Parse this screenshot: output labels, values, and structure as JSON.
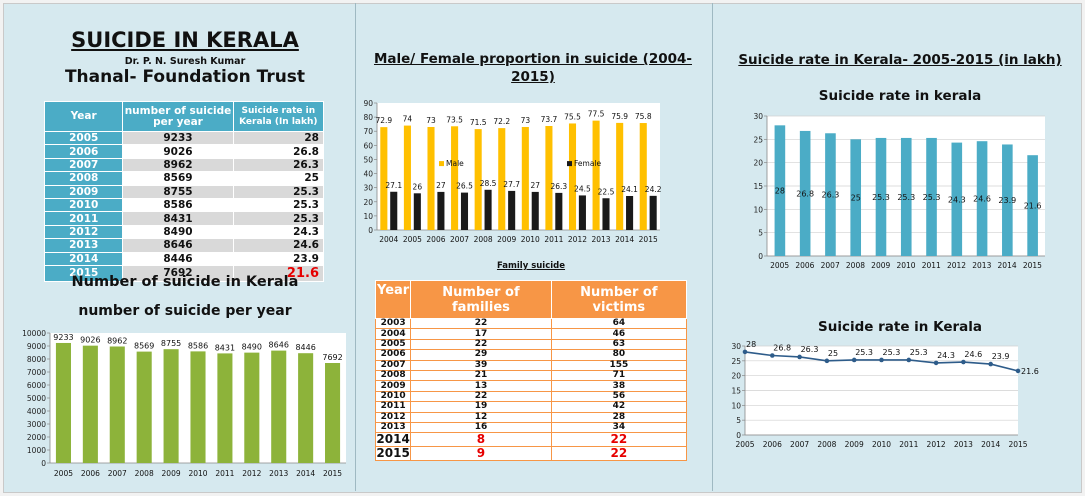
{
  "left_panel": {
    "title": "SUICIDE IN KERALA",
    "author": "Dr. P. N. Suresh Kumar",
    "org": "Thanal- Foundation Trust",
    "table": {
      "headers": [
        "Year",
        "number of suicide per year",
        "Suicide rate in Kerala (In lakh)"
      ],
      "rows": [
        [
          "2005",
          "9233",
          "28"
        ],
        [
          "2006",
          "9026",
          "26.8"
        ],
        [
          "2007",
          "8962",
          "26.3"
        ],
        [
          "2008",
          "8569",
          "25"
        ],
        [
          "2009",
          "8755",
          "25.3"
        ],
        [
          "2010",
          "8586",
          "25.3"
        ],
        [
          "2011",
          "8431",
          "25.3"
        ],
        [
          "2012",
          "8490",
          "24.3"
        ],
        [
          "2013",
          "8646",
          "24.6"
        ],
        [
          "2014",
          "8446",
          "23.9"
        ],
        [
          "2015",
          "7692",
          "21.6"
        ]
      ],
      "highlight_color": "#e60000"
    },
    "chart_title": "Number of suicide in Kerala",
    "chart_subtitle": "number of suicide per year"
  },
  "middle_panel": {
    "chart_title": "Male/ Female proportion in suicide (2004-2015)",
    "family_title": "Family suicide",
    "family_table": {
      "headers": [
        "Year",
        "Number of families",
        "Number of victims"
      ],
      "rows": [
        [
          "2003",
          "22",
          "64"
        ],
        [
          "2004",
          "17",
          "46"
        ],
        [
          "2005",
          "22",
          "63"
        ],
        [
          "2006",
          "29",
          "80"
        ],
        [
          "2007",
          "39",
          "155"
        ],
        [
          "2008",
          "21",
          "71"
        ],
        [
          "2009",
          "13",
          "38"
        ],
        [
          "2010",
          "22",
          "56"
        ],
        [
          "2011",
          "19",
          "42"
        ],
        [
          "2012",
          "12",
          "28"
        ],
        [
          "2013",
          "16",
          "34"
        ],
        [
          "2014",
          "8",
          "22"
        ],
        [
          "2015",
          "9",
          "22"
        ]
      ]
    }
  },
  "right_panel": {
    "heading": "Suicide rate in Kerala- 2005-2015 (in lakh)"
  },
  "colors": {
    "teal": "#4bacc6",
    "green": "#8db33a",
    "orange": "#f79646",
    "male": "#ffc000",
    "female": "#1a1a1a",
    "line": "#2e5c8a"
  },
  "chart_data": [
    {
      "id": "count_bar",
      "type": "bar",
      "title": "number of suicide per year",
      "categories": [
        "2005",
        "2006",
        "2007",
        "2008",
        "2009",
        "2010",
        "2011",
        "2012",
        "2013",
        "2014",
        "2015"
      ],
      "values": [
        9233,
        9026,
        8962,
        8569,
        8755,
        8586,
        8431,
        8490,
        8646,
        8446,
        7692
      ],
      "ylim": [
        0,
        10000
      ],
      "yticks": [
        0,
        1000,
        2000,
        3000,
        4000,
        5000,
        6000,
        7000,
        8000,
        9000,
        10000
      ],
      "grid": false
    },
    {
      "id": "gender_bar",
      "type": "bar",
      "categories": [
        "2004",
        "2005",
        "2006",
        "2007",
        "2008",
        "2009",
        "2010",
        "2011",
        "2012",
        "2013",
        "2014",
        "2015"
      ],
      "series": [
        {
          "name": "Male",
          "values": [
            72.9,
            74,
            73,
            73.5,
            71.5,
            72.2,
            73,
            73.7,
            75.5,
            77.5,
            75.9,
            75.8
          ]
        },
        {
          "name": "Female",
          "values": [
            27.1,
            26,
            27,
            26.5,
            28.5,
            27.7,
            27,
            26.3,
            24.5,
            22.5,
            24.1,
            24.2
          ]
        }
      ],
      "ylim": [
        0,
        90
      ],
      "yticks": [
        0,
        10,
        20,
        30,
        40,
        50,
        60,
        70,
        80,
        90
      ],
      "legend": "inside"
    },
    {
      "id": "rate_bar",
      "type": "bar",
      "title": "Suicide rate in kerala",
      "categories": [
        "2005",
        "2006",
        "2007",
        "2008",
        "2009",
        "2010",
        "2011",
        "2012",
        "2013",
        "2014",
        "2015"
      ],
      "values": [
        28,
        26.8,
        26.3,
        25,
        25.3,
        25.3,
        25.3,
        24.3,
        24.6,
        23.9,
        21.6
      ],
      "ylim": [
        0,
        30
      ],
      "yticks": [
        0,
        5,
        10,
        15,
        20,
        25,
        30
      ],
      "grid": true
    },
    {
      "id": "rate_line",
      "type": "line",
      "title": "Suicide rate in Kerala",
      "categories": [
        "2005",
        "2006",
        "2007",
        "2008",
        "2009",
        "2010",
        "2011",
        "2012",
        "2013",
        "2014",
        "2015"
      ],
      "values": [
        28,
        26.8,
        26.3,
        25,
        25.3,
        25.3,
        25.3,
        24.3,
        24.6,
        23.9,
        21.6
      ],
      "ylim": [
        0,
        30
      ],
      "yticks": [
        0,
        5,
        10,
        15,
        20,
        25,
        30
      ],
      "grid": true
    }
  ]
}
